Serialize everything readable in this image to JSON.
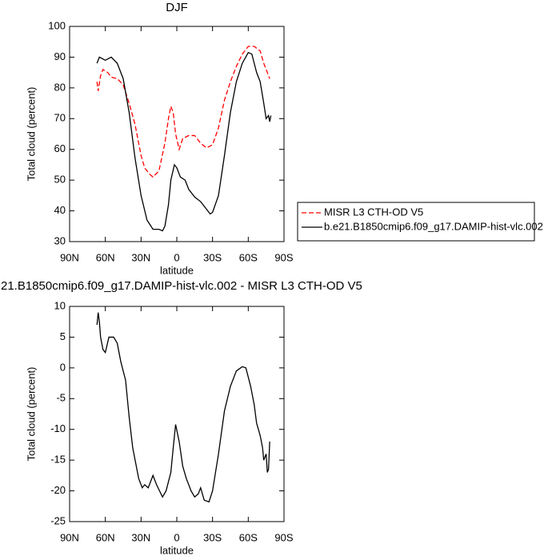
{
  "chart_data": [
    {
      "type": "line",
      "title": "DJF",
      "ylabel": "Total cloud (percent)",
      "xlabel": "latitude",
      "xlim": [
        90,
        -90
      ],
      "xticks": [
        {
          "value": 90,
          "label": "90N"
        },
        {
          "value": 60,
          "label": "60N"
        },
        {
          "value": 30,
          "label": "30N"
        },
        0,
        {
          "value": -30,
          "label": "30S"
        },
        {
          "value": -60,
          "label": "60S"
        },
        {
          "value": -90,
          "label": "90S"
        }
      ],
      "ylim": [
        30,
        100
      ],
      "yticks": [
        30,
        40,
        50,
        60,
        70,
        80,
        90,
        100
      ],
      "legend": "right",
      "series": [
        {
          "name": "MISR L3 CTH-OD V5",
          "color": "#ff0000",
          "line_style": "dashed",
          "x": [
            67,
            66,
            64,
            62,
            58,
            55,
            50,
            45,
            40,
            35,
            30,
            27,
            23,
            20,
            15,
            10,
            7,
            5,
            3,
            1,
            -2,
            -5,
            -10,
            -15,
            -20,
            -25,
            -30,
            -35,
            -40,
            -45,
            -50,
            -55,
            -60,
            -65,
            -70,
            -73,
            -75,
            -78
          ],
          "values": [
            82,
            79,
            84,
            86,
            85,
            83.5,
            83,
            81,
            75,
            68,
            58,
            54,
            52,
            51,
            53,
            62,
            70,
            74,
            72,
            65,
            60,
            63.5,
            64.5,
            64.5,
            62,
            60.5,
            61.5,
            67,
            76,
            82,
            87,
            91,
            93.5,
            93.5,
            92,
            88,
            86,
            83
          ]
        },
        {
          "name": "b.e21.B1850cmip6.f09_g17.DAMIP-hist-vlc.002",
          "color": "#000000",
          "line_style": "solid",
          "x": [
            67,
            65,
            60,
            55,
            50,
            45,
            40,
            35,
            30,
            25,
            20,
            15,
            12,
            10,
            7,
            5,
            2,
            0,
            -3,
            -7,
            -10,
            -15,
            -20,
            -25,
            -28,
            -30,
            -35,
            -40,
            -45,
            -50,
            -55,
            -60,
            -63,
            -65,
            -67,
            -70,
            -73,
            -75,
            -77,
            -78,
            -79
          ],
          "values": [
            88,
            90,
            89,
            90,
            88,
            83,
            72,
            57,
            45,
            37,
            34,
            34,
            33.5,
            35,
            42,
            50,
            55,
            54,
            51,
            50,
            47,
            44.5,
            43,
            40.5,
            39,
            39.5,
            45,
            58,
            72,
            82,
            88,
            91.5,
            91,
            88,
            85,
            82,
            75,
            70,
            71,
            69,
            71
          ]
        }
      ]
    },
    {
      "type": "line",
      "title": "21.B1850cmip6.f09_g17.DAMIP-hist-vlc.002 - MISR L3 CTH-OD V5",
      "ylabel": "Total cloud (percent)",
      "xlabel": "latitude",
      "xlim": [
        90,
        -90
      ],
      "xticks": [
        {
          "value": 90,
          "label": "90N"
        },
        {
          "value": 60,
          "label": "60N"
        },
        {
          "value": 30,
          "label": "30N"
        },
        0,
        {
          "value": -30,
          "label": "30S"
        },
        {
          "value": -60,
          "label": "60S"
        },
        {
          "value": -90,
          "label": "90S"
        }
      ],
      "ylim": [
        -25,
        10
      ],
      "yticks": [
        -25,
        -20,
        -15,
        -10,
        -5,
        0,
        5,
        10
      ],
      "series": [
        {
          "color": "#000000",
          "line_style": "solid",
          "x": [
            67,
            66,
            65,
            64,
            62,
            60,
            57,
            53,
            50,
            47,
            43,
            40,
            37,
            35,
            32,
            29,
            27,
            24,
            20,
            17,
            12,
            9,
            5,
            3,
            1,
            -2,
            -5,
            -8,
            -12,
            -15,
            -18,
            -20,
            -23,
            -27,
            -30,
            -35,
            -40,
            -45,
            -50,
            -55,
            -58,
            -62,
            -65,
            -67,
            -70,
            -72,
            -73,
            -75,
            -76,
            -77,
            -78
          ],
          "values": [
            7,
            9,
            7.5,
            5,
            3,
            2.5,
            5,
            5,
            4,
            1,
            -2,
            -8,
            -13,
            -15,
            -18,
            -19.5,
            -19,
            -19.5,
            -17.5,
            -19,
            -21,
            -20,
            -17,
            -13,
            -9.2,
            -12,
            -16,
            -18,
            -20,
            -21,
            -20.5,
            -19.5,
            -21.5,
            -21.8,
            -20,
            -14,
            -7,
            -3,
            -0.5,
            0.2,
            0,
            -3,
            -6,
            -9,
            -11,
            -13,
            -15,
            -14,
            -17,
            -16.5,
            -12
          ]
        }
      ]
    }
  ]
}
